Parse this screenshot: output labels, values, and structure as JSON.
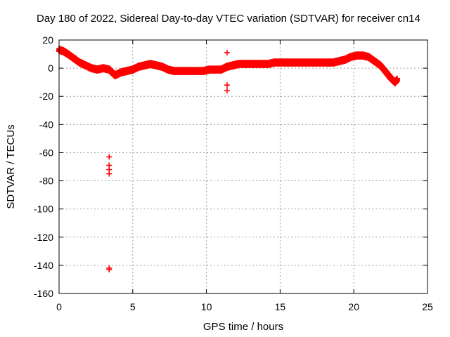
{
  "chart_data": {
    "type": "scatter",
    "title": "Day 180 of 2022, Sidereal Day-to-day VTEC variation (SDTVAR) for receiver cn14",
    "xlabel": "GPS time / hours",
    "ylabel": "SDTVAR / TECUs",
    "xlim": [
      0,
      25
    ],
    "ylim": [
      -160,
      20
    ],
    "xticks": [
      0,
      5,
      10,
      15,
      20,
      25
    ],
    "yticks": [
      20,
      0,
      -20,
      -40,
      -60,
      -80,
      -100,
      -120,
      -140,
      -160
    ],
    "grid": true,
    "marker": "+",
    "color": "#ff0000",
    "series": [
      {
        "name": "main-trace",
        "x": [
          0.0,
          0.3,
          0.6,
          1.0,
          1.4,
          1.8,
          2.2,
          2.6,
          3.0,
          3.4,
          3.6,
          3.8,
          4.2,
          4.6,
          5.0,
          5.4,
          5.8,
          6.2,
          6.6,
          7.0,
          7.4,
          7.8,
          8.2,
          8.6,
          9.0,
          9.4,
          9.8,
          10.2,
          10.6,
          11.0,
          11.4,
          11.8,
          12.2,
          12.6,
          13.0,
          13.4,
          13.8,
          14.2,
          14.6,
          15.0,
          15.4,
          15.8,
          16.2,
          16.6,
          17.0,
          17.4,
          17.8,
          18.2,
          18.6,
          19.0,
          19.4,
          19.8,
          20.2,
          20.6,
          21.0,
          21.4,
          21.8,
          22.2,
          22.5,
          22.8,
          22.95
        ],
        "y": [
          13,
          12,
          10,
          7,
          4,
          2,
          0,
          -1,
          0,
          -1,
          -3,
          -5,
          -3,
          -2,
          -1,
          1,
          2,
          3,
          2,
          1,
          -1,
          -2,
          -2,
          -2,
          -2,
          -2,
          -2,
          -1,
          -1,
          -1,
          1,
          2,
          3,
          3,
          3,
          3,
          3,
          3,
          4,
          4,
          4,
          4,
          4,
          4,
          4,
          4,
          4,
          4,
          4,
          5,
          6,
          8,
          9,
          9,
          8,
          5,
          2,
          -3,
          -7,
          -10,
          -8
        ]
      },
      {
        "name": "outliers-3.4h",
        "x": [
          3.4,
          3.4,
          3.4,
          3.4,
          3.4,
          3.4
        ],
        "y": [
          -63,
          -69,
          -72,
          -75,
          -142,
          -143
        ]
      },
      {
        "name": "outliers-11.4h",
        "x": [
          11.4,
          11.4,
          11.4
        ],
        "y": [
          11,
          -12,
          -16
        ]
      }
    ]
  }
}
